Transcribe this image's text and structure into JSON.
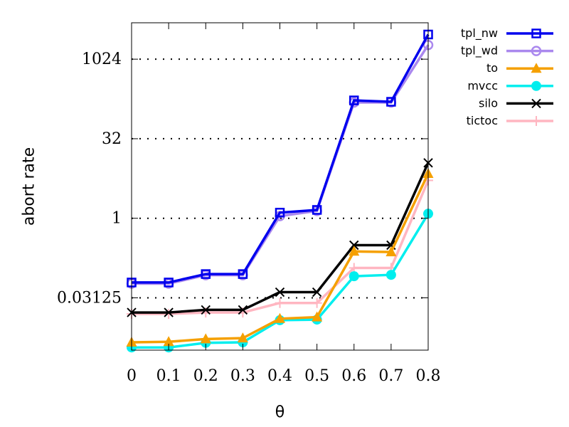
{
  "chart_data": {
    "type": "line",
    "xlabel": "θ",
    "ylabel": "abort rate",
    "x": [
      0,
      0.1,
      0.2,
      0.3,
      0.4,
      0.5,
      0.6,
      0.7,
      0.8
    ],
    "x_tick_labels": [
      "0",
      "0.1",
      "0.2",
      "0.3",
      "0.4",
      "0.5",
      "0.6",
      "0.7",
      "0.8"
    ],
    "y_scale": "log2",
    "y_ticks": [
      0.03125,
      1,
      32,
      1024
    ],
    "y_tick_labels": [
      "0.03125",
      "1",
      "32",
      "1024"
    ],
    "ylim": [
      0.0032,
      5000
    ],
    "grid": "horizontal dotted at y ticks",
    "legend": "outside-right",
    "series": [
      {
        "name": "tpl_nw",
        "color": "#0000ee",
        "marker": "square",
        "values": [
          0.061,
          0.061,
          0.088,
          0.088,
          1.28,
          1.44,
          170,
          160,
          3000
        ]
      },
      {
        "name": "tpl_wd",
        "color": "#aa88ee",
        "marker": "circle",
        "values": [
          0.058,
          0.058,
          0.084,
          0.084,
          1.1,
          1.38,
          155,
          155,
          1900
        ]
      },
      {
        "name": "to",
        "color": "#f5a000",
        "marker": "triangle",
        "values": [
          0.0045,
          0.0046,
          0.0052,
          0.0054,
          0.0126,
          0.0135,
          0.236,
          0.23,
          7.0
        ]
      },
      {
        "name": "mvcc",
        "color": "#00eeee",
        "marker": "dot",
        "values": [
          0.0036,
          0.0036,
          0.0044,
          0.0045,
          0.0118,
          0.0121,
          0.08,
          0.085,
          1.22
        ]
      },
      {
        "name": "silo",
        "color": "#000000",
        "marker": "x",
        "values": [
          0.0165,
          0.0165,
          0.0185,
          0.0185,
          0.04,
          0.04,
          0.31,
          0.31,
          11.2
        ]
      },
      {
        "name": "tictoc",
        "color": "#ffb6c1",
        "marker": "plus",
        "values": [
          0.0155,
          0.0155,
          0.0165,
          0.0165,
          0.025,
          0.025,
          0.115,
          0.115,
          5.2
        ]
      }
    ]
  }
}
